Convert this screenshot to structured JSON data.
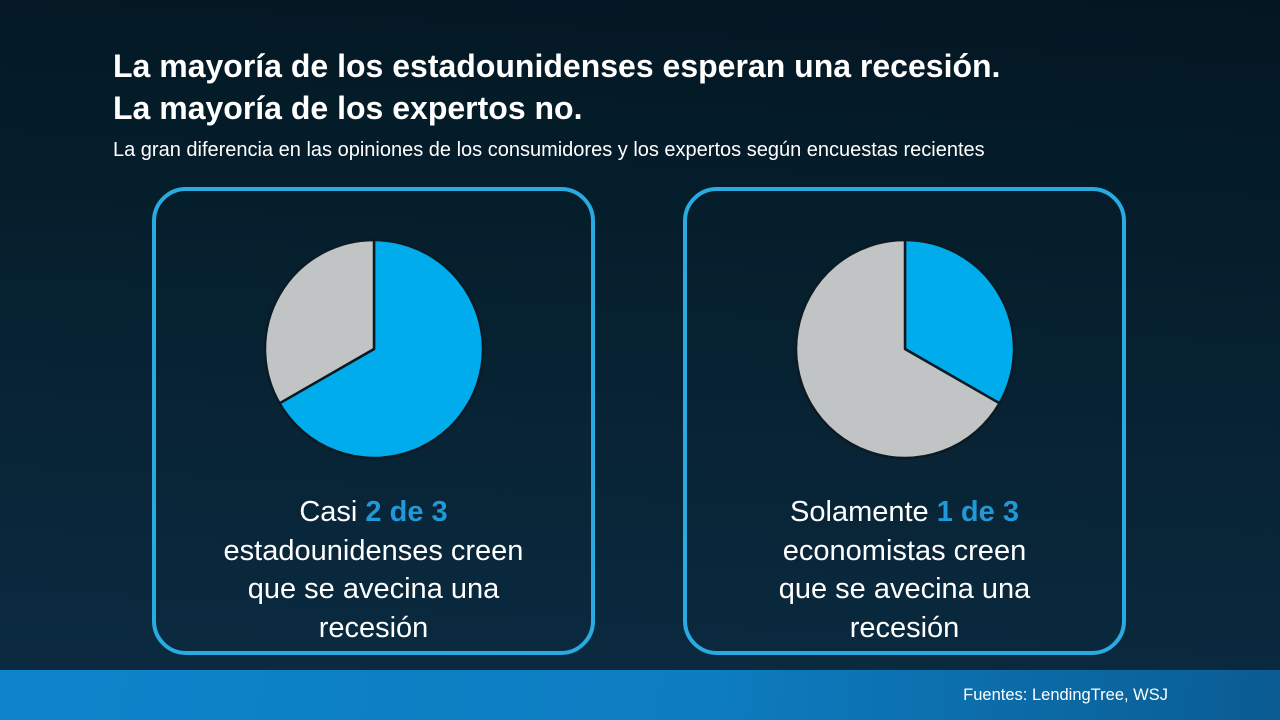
{
  "header": {
    "title_line1": "La mayoría de los estadounidenses esperan una recesión.",
    "title_line2": "La mayoría de los expertos no.",
    "subtitle": "La gran diferencia en las opiniones de los consumidores y los expertos según encuestas recientes"
  },
  "cards": [
    {
      "caption_segments": [
        {
          "text": "Casi ",
          "accent": false
        },
        {
          "text": "2 de 3",
          "accent": true
        },
        {
          "text": "\nestadounidenses creen\nque se avecina una\nrecesión",
          "accent": false
        }
      ]
    },
    {
      "caption_segments": [
        {
          "text": "Solamente ",
          "accent": false
        },
        {
          "text": "1 de 3",
          "accent": true
        },
        {
          "text": "\neconomistas creen\nque se avecina una\nrecesión",
          "accent": false
        }
      ]
    }
  ],
  "footer": {
    "source": "Fuentes: LendingTree, WSJ"
  },
  "colors": {
    "accent_text": "#2199d6",
    "card_border": "#29abe2",
    "pie_highlight": "#00acec",
    "pie_muted": "#c1c4c5",
    "pie_outline": "#0c1a24",
    "bar_gradient_left": "#0d84ca",
    "bar_gradient_right": "#0a5c92"
  },
  "chart_data": [
    {
      "type": "pie",
      "title": "Casi 2 de 3 estadounidenses creen que se avecina una recesión",
      "start_angle_deg": 0,
      "direction": "clockwise",
      "legend_position": "none",
      "slices": [
        {
          "label": "creen que se avecina una recesión",
          "fraction": 0.667,
          "color": "#00acec"
        },
        {
          "label": "",
          "fraction": 0.333,
          "color": "#c1c4c5"
        }
      ]
    },
    {
      "type": "pie",
      "title": "Solamente 1 de 3 economistas creen que se avecina una recesión",
      "start_angle_deg": 0,
      "direction": "clockwise",
      "legend_position": "none",
      "slices": [
        {
          "label": "creen que se avecina una recesión",
          "fraction": 0.333,
          "color": "#00acec"
        },
        {
          "label": "",
          "fraction": 0.667,
          "color": "#c1c4c5"
        }
      ]
    }
  ]
}
